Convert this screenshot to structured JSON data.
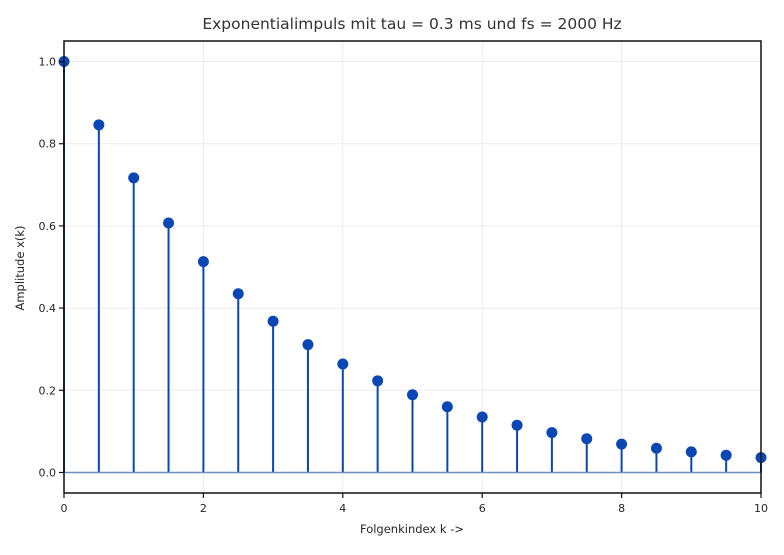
{
  "chart_data": {
    "type": "stem",
    "title": "Exponentialimpuls mit tau = 0.3 ms und fs = 2000 Hz",
    "xlabel": "Folgenkindex k ->",
    "ylabel": "Amplitude x(k)",
    "xlim": [
      0,
      10
    ],
    "ylim": [
      -0.05,
      1.05
    ],
    "xticks": [
      0,
      2,
      4,
      6,
      8,
      10
    ],
    "xtick_labels": [
      "0",
      "2",
      "4",
      "6",
      "8",
      "10"
    ],
    "yticks": [
      0.0,
      0.2,
      0.4,
      0.6,
      0.8,
      1.0
    ],
    "ytick_labels": [
      "0.0",
      "0.2",
      "0.4",
      "0.6",
      "0.8",
      "1.0"
    ],
    "grid": true,
    "colors": {
      "stem": "#0a47b5",
      "marker": "#0a47b5",
      "baseline": "#6b8fc7",
      "grid": "#ebebeb",
      "frame": "#111111"
    },
    "x": [
      0,
      0.5,
      1,
      1.5,
      2,
      2.5,
      3,
      3.5,
      4,
      4.5,
      5,
      5.5,
      6,
      6.5,
      7,
      7.5,
      8,
      8.5,
      9,
      9.5,
      10
    ],
    "values": [
      1.0,
      0.846,
      0.717,
      0.607,
      0.513,
      0.435,
      0.368,
      0.311,
      0.264,
      0.223,
      0.189,
      0.16,
      0.135,
      0.115,
      0.097,
      0.082,
      0.069,
      0.059,
      0.05,
      0.042,
      0.036
    ]
  }
}
